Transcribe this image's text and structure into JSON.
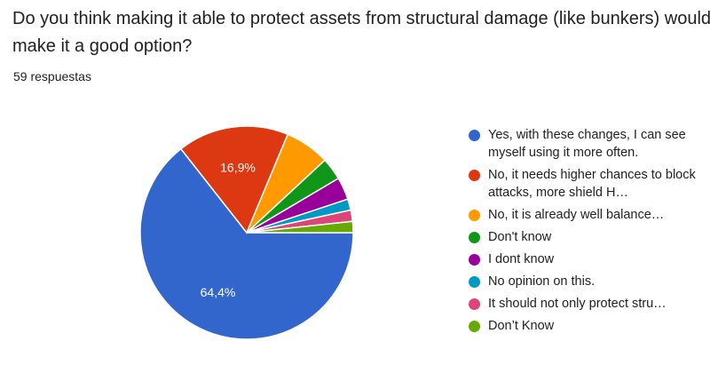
{
  "question": "Do you think making it able to protect assets from structural damage (like bunkers) would make it a good option?",
  "response_count": "59 respuestas",
  "chart_data": {
    "type": "pie",
    "slices": [
      {
        "label": "Yes, with these changes, I can see myself using it more often.",
        "value": 64.4,
        "display": "64,4%",
        "color": "#3366cc"
      },
      {
        "label": "No, it needs higher chances to block attacks, more shield H…",
        "value": 16.9,
        "display": "16,9%",
        "color": "#dc3912"
      },
      {
        "label": "No, it is already well balance…",
        "value": 6.8,
        "display": "",
        "color": "#ff9900"
      },
      {
        "label": "Don't know",
        "value": 3.4,
        "display": "",
        "color": "#109618"
      },
      {
        "label": "I dont know",
        "value": 3.4,
        "display": "",
        "color": "#990099"
      },
      {
        "label": "No opinion on this.",
        "value": 1.7,
        "display": "",
        "color": "#0099c6"
      },
      {
        "label": "It should not only protect stru…",
        "value": 1.7,
        "display": "",
        "color": "#dd4477"
      },
      {
        "label": "Don’t Know",
        "value": 1.7,
        "display": "",
        "color": "#66aa00"
      }
    ],
    "legend_position": "right"
  }
}
